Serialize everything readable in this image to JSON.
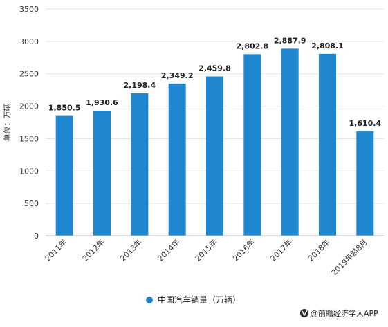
{
  "chart_data": {
    "type": "bar",
    "title": "",
    "xlabel": "",
    "ylabel": "单位：万辆",
    "ylim": [
      0,
      3500
    ],
    "yticks": [
      0,
      500,
      1000,
      1500,
      2000,
      2500,
      3000,
      3500
    ],
    "grid": true,
    "legend_position": "bottom",
    "categories": [
      "2011年",
      "2012年",
      "2013年",
      "2014年",
      "2015年",
      "2016年",
      "2017年",
      "2018年",
      "2019年前8月"
    ],
    "series": [
      {
        "name": "中国汽车销量（万辆）",
        "color": "#1f86d0",
        "values": [
          1850.5,
          1930.6,
          2198.4,
          2349.2,
          2459.8,
          2802.8,
          2887.9,
          2808.1,
          1610.4
        ],
        "labels": [
          "1,850.5",
          "1,930.6",
          "2,198.4",
          "2,349.2",
          "2,459.8",
          "2,802.8",
          "2,887.9",
          "2,808.1",
          "1,610.4"
        ]
      }
    ]
  },
  "source": {
    "text": "@前瞻经济学人APP"
  }
}
